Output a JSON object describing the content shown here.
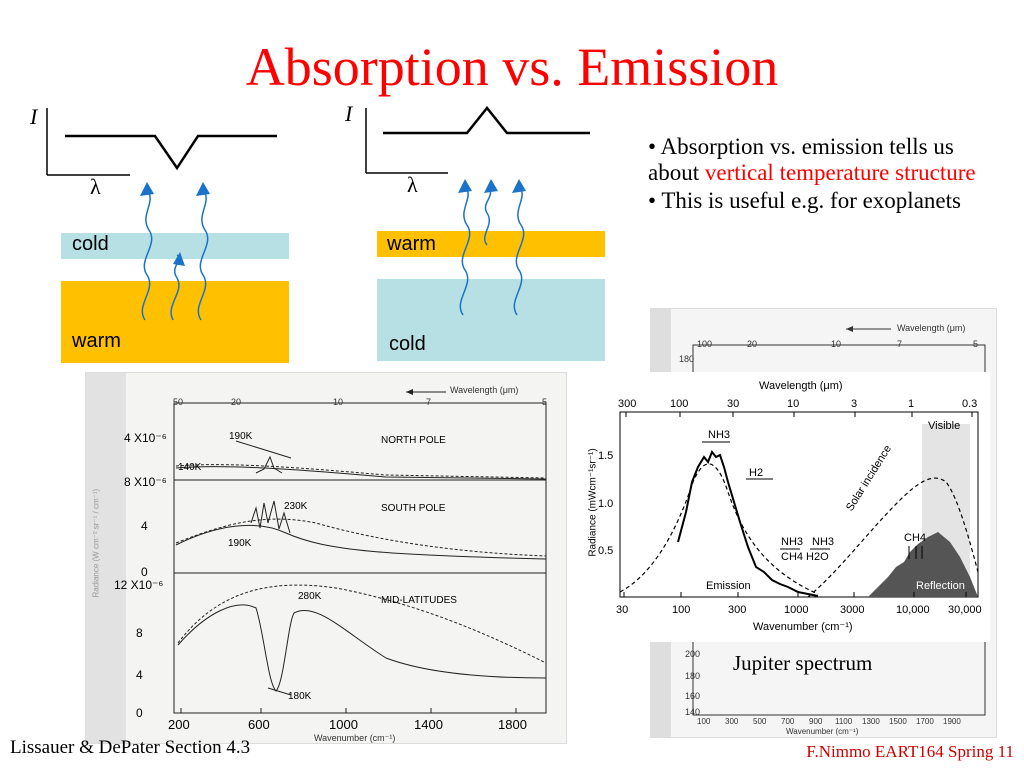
{
  "title": "Absorption vs. Emission",
  "left_diagram": {
    "axis_y": "I",
    "axis_x": "λ",
    "top_layer": "cold",
    "bottom_layer": "warm",
    "colors": {
      "cold": "#b7e0e4",
      "warm": "#ffc000",
      "arrow": "#1a73c8"
    }
  },
  "right_diagram": {
    "axis_y": "I",
    "axis_x": "λ",
    "top_layer": "warm",
    "bottom_layer": "cold"
  },
  "bullets": {
    "b1_pre": "• Absorption vs. emission tells us about ",
    "b1_hl": "vertical temperature structure",
    "b2": "• This is useful e.g. for exoplanets"
  },
  "left_plot": {
    "top_axis_label": "Wavelength (μm)",
    "top_ticks": [
      "50",
      "20",
      "10",
      "7",
      "5"
    ],
    "panels": [
      {
        "name": "NORTH POLE",
        "y_top": "4 X10⁻⁶",
        "temp_hi": "190K",
        "temp_lo": "140K"
      },
      {
        "name": "SOUTH POLE",
        "y_top": "8 X10⁻⁶",
        "y_mid": "4",
        "temp_hi": "230K",
        "temp_lo": "190K"
      },
      {
        "name": "MID-LATITUDES",
        "y_top": "12 X10⁻⁶",
        "y_ticks": [
          "8",
          "4",
          "0"
        ],
        "temp_hi": "280K",
        "temp_lo": "180K"
      }
    ],
    "y_zero_top": "0",
    "y_label": "Radiance (W cm⁻² sr⁻¹ / cm⁻¹)",
    "x_ticks": [
      "200",
      "600",
      "1000",
      "1400",
      "1800"
    ],
    "x_label": "Wavenumber (cm⁻¹)"
  },
  "right_plot": {
    "background_axis_label": "Wavelength (μm)",
    "background_top_ticks": [
      "100",
      "20",
      "10",
      "7",
      "5"
    ],
    "background_y_top": "180",
    "background_y_bottom": [
      "200",
      "180",
      "160",
      "140"
    ],
    "background_x_ticks": [
      "100",
      "300",
      "500",
      "700",
      "900",
      "1100",
      "1300",
      "1500",
      "1700",
      "1900"
    ],
    "background_x_label": "Wavenumber (cm⁻¹)",
    "top_axis_label": "Wavelength (μm)",
    "top_ticks": [
      "300",
      "100",
      "30",
      "10",
      "3",
      "1",
      "0.3"
    ],
    "y_label": "Radiance (mWcm⁻¹sr⁻¹)",
    "y_ticks": [
      "1.5",
      "1.0",
      "0.5"
    ],
    "x_ticks": [
      "30",
      "100",
      "300",
      "1000",
      "3000",
      "10,000",
      "30,000"
    ],
    "x_label": "Wavenumber (cm⁻¹)",
    "annotations": {
      "nh3": "NH3",
      "h2": "H2",
      "nh3_b": "NH3",
      "nh3_c": "NH3",
      "ch4_h2o": "CH4 H2O",
      "emission": "Emission",
      "solar": "Solar incidence",
      "visible": "Visible",
      "ch4": "CH4",
      "reflection": "Reflection"
    },
    "caption": "Jupiter spectrum"
  },
  "footer": {
    "left": "Lissauer & DePater Section 4.3",
    "right": "F.Nimmo EART164 Spring 11"
  }
}
